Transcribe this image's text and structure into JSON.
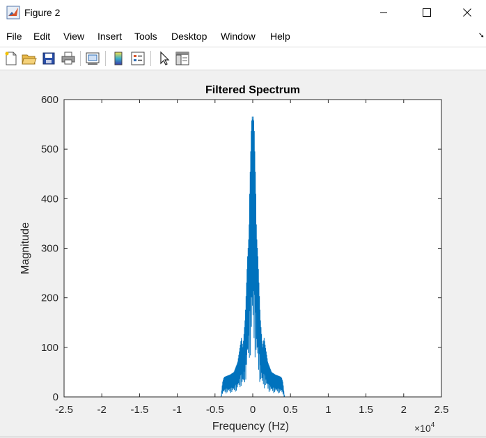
{
  "window": {
    "title": "Figure 2"
  },
  "menu": {
    "items": [
      "File",
      "Edit",
      "View",
      "Insert",
      "Tools",
      "Desktop",
      "Window",
      "Help"
    ]
  },
  "toolbar": {
    "buttons": [
      "new-figure-icon",
      "open-file-icon",
      "save-icon",
      "print-icon",
      "link-plot-icon",
      "colorbar-icon",
      "legend-icon",
      "select-pointer-icon",
      "property-inspector-icon"
    ]
  },
  "colors": {
    "line": "#0072BD",
    "figure_bg": "#f0f0f0",
    "axes_bg": "#ffffff"
  },
  "chart_data": {
    "type": "line",
    "title": "Filtered Spectrum",
    "xlabel": "Frequency (Hz)",
    "ylabel": "Magnitude",
    "x_exponent_label": "×10",
    "x_exponent_power": "4",
    "xlim": [
      -2.5,
      2.5
    ],
    "ylim": [
      0,
      600
    ],
    "x_scale_note": "x values in units of 10^4 Hz",
    "xticks": [
      -2.5,
      -2,
      -1.5,
      -1,
      -0.5,
      0,
      0.5,
      1,
      1.5,
      2,
      2.5
    ],
    "xtick_labels": [
      "-2.5",
      "-2",
      "-1.5",
      "-1",
      "-0.5",
      "0",
      "0.5",
      "1",
      "1.5",
      "2",
      "2.5"
    ],
    "yticks": [
      0,
      100,
      200,
      300,
      400,
      500,
      600
    ],
    "ytick_labels": [
      "0",
      "100",
      "200",
      "300",
      "400",
      "500",
      "600"
    ],
    "grid": false,
    "series": [
      {
        "x": [
          -2.4,
          -0.42,
          -0.4,
          -0.38,
          -0.35,
          -0.3,
          -0.25,
          -0.2,
          -0.15,
          -0.13,
          -0.1,
          -0.07,
          -0.05,
          -0.04,
          -0.02,
          -0.01,
          0.0,
          0.01,
          0.02,
          0.04,
          0.05,
          0.07,
          0.1,
          0.13,
          0.15,
          0.2,
          0.25,
          0.3,
          0.35,
          0.38,
          0.4,
          0.42,
          2.4
        ],
        "envelope": [
          0,
          0,
          30,
          40,
          42,
          45,
          50,
          70,
          120,
          100,
          160,
          280,
          330,
          420,
          540,
          568,
          560,
          568,
          540,
          420,
          330,
          280,
          160,
          100,
          120,
          70,
          50,
          45,
          42,
          40,
          30,
          0,
          0
        ]
      }
    ]
  }
}
